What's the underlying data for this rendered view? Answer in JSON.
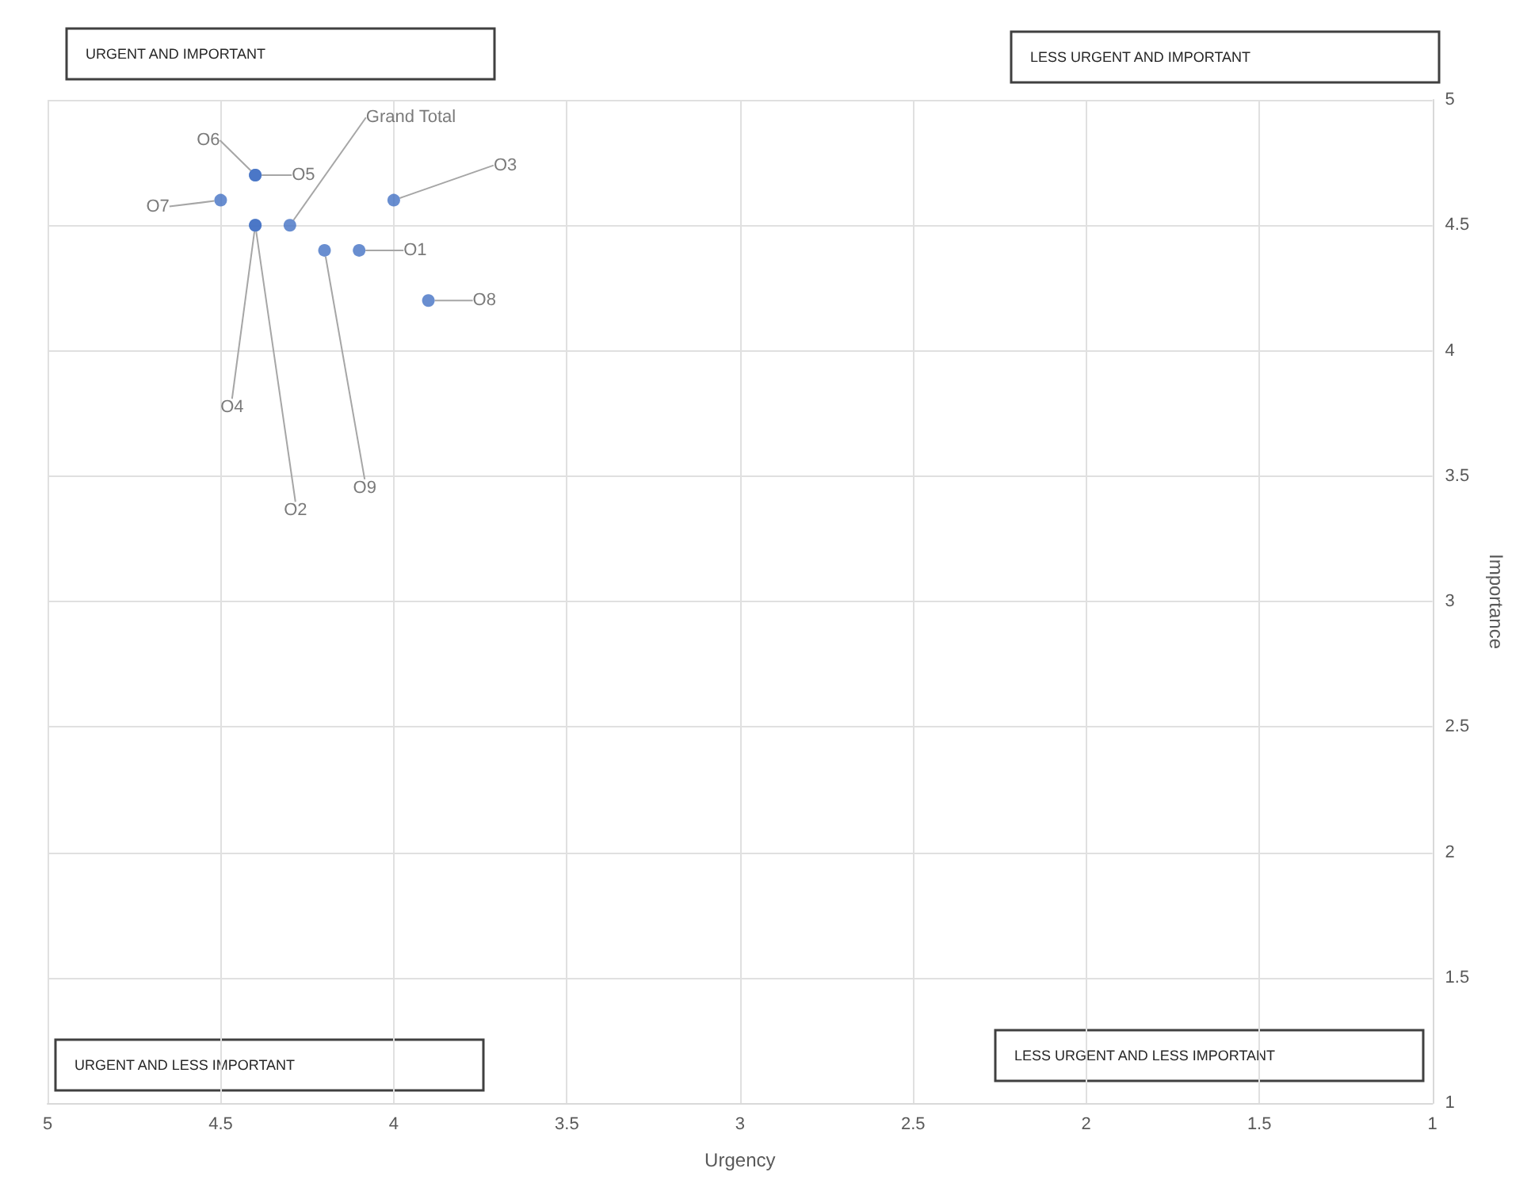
{
  "chart_data": {
    "type": "scatter",
    "xlabel": "Urgency",
    "ylabel": "Importance",
    "x": [
      4.1,
      4.4,
      4.0,
      4.4,
      4.4,
      4.4,
      4.5,
      3.9,
      4.2,
      4.3
    ],
    "values": [
      4.4,
      4.5,
      4.6,
      4.5,
      4.7,
      4.7,
      4.6,
      4.2,
      4.4,
      4.5
    ],
    "value_labels": [
      "O1",
      "O2",
      "O3",
      "O4",
      "O5",
      "O6",
      "O7",
      "O8",
      "O9",
      "Grand Total"
    ],
    "color": "#4472c4",
    "marker": "circle",
    "xlim": [
      5,
      1
    ],
    "xticks": [
      5,
      4.5,
      4,
      3.5,
      3,
      2.5,
      2,
      1.5,
      1
    ],
    "ylim": [
      1,
      5
    ],
    "yticks": [
      1,
      1.5,
      2,
      2.5,
      3,
      3.5,
      4,
      4.5,
      5
    ],
    "grid": true,
    "annotations": [
      "URGENT AND IMPORTANT",
      "LESS URGENT AND IMPORTANT",
      "URGENT AND LESS IMPORTANT",
      "LESS URGENT AND LESS IMPORTANT"
    ]
  }
}
